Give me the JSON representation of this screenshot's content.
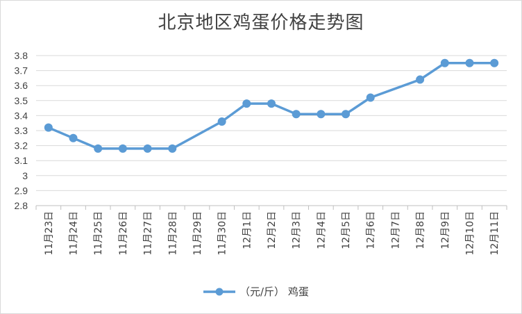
{
  "chart_data": {
    "type": "line",
    "title": "北京地区鸡蛋价格走势图",
    "xlabel": "",
    "ylabel": "",
    "categories": [
      "11月23日",
      "11月24日",
      "11月25日",
      "11月26日",
      "11月27日",
      "11月28日",
      "11月29日",
      "11月30日",
      "12月1日",
      "12月2日",
      "12月3日",
      "12月4日",
      "12月5日",
      "12月6日",
      "12月7日",
      "12月8日",
      "12月9日",
      "12月10日",
      "12月11日"
    ],
    "series": [
      {
        "name": "（元/斤） 鸡蛋",
        "values": [
          3.32,
          3.25,
          3.18,
          3.18,
          3.18,
          3.18,
          null,
          3.36,
          3.48,
          3.48,
          3.41,
          3.41,
          3.41,
          3.52,
          null,
          3.64,
          3.75,
          3.75,
          3.75
        ]
      }
    ],
    "ylim": [
      2.8,
      3.8
    ],
    "yticks": [
      "2.8",
      "2.9",
      "3",
      "3.1",
      "3.2",
      "3.3",
      "3.4",
      "3.5",
      "3.6",
      "3.7",
      "3.8"
    ],
    "grid": true,
    "legend": "bottom",
    "colors": {
      "series": "#5b9bd5",
      "grid": "#d9d9d9",
      "text": "#404040"
    }
  }
}
